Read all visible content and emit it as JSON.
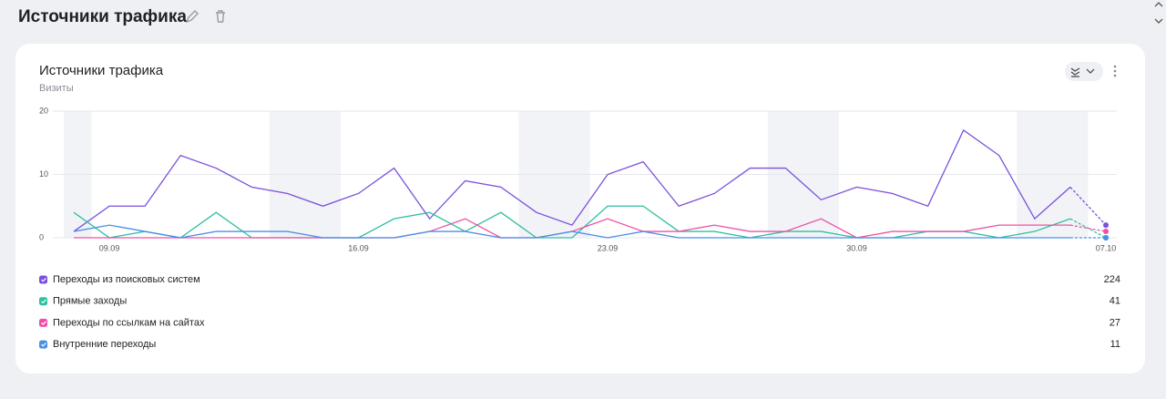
{
  "header": {
    "title": "Источники трафика"
  },
  "chart_data": {
    "type": "line",
    "title": "Источники трафика",
    "subtitle": "Визиты",
    "categories": [
      null,
      "09.09",
      null,
      null,
      null,
      null,
      null,
      null,
      "16.09",
      null,
      null,
      null,
      null,
      null,
      null,
      "23.09",
      null,
      null,
      null,
      null,
      null,
      null,
      "30.09",
      null,
      null,
      null,
      null,
      null,
      null,
      "07.10"
    ],
    "ylim": [
      0,
      20
    ],
    "yticks": [
      0,
      10,
      20
    ],
    "grid": true,
    "series": [
      {
        "name": "Переходы из поисковых систем",
        "color": "#7a4fdc",
        "total": 224,
        "values": [
          1,
          5,
          5,
          13,
          11,
          8,
          7,
          5,
          7,
          11,
          3,
          9,
          8,
          4,
          2,
          10,
          12,
          5,
          7,
          11,
          11,
          6,
          8,
          7,
          5,
          17,
          13,
          3,
          8,
          2
        ]
      },
      {
        "name": "Прямые заходы",
        "color": "#2fbf9f",
        "total": 41,
        "values": [
          4,
          0,
          1,
          0,
          4,
          0,
          0,
          0,
          0,
          3,
          4,
          1,
          4,
          0,
          0,
          5,
          5,
          1,
          1,
          0,
          1,
          1,
          0,
          0,
          1,
          1,
          0,
          1,
          3,
          0
        ]
      },
      {
        "name": "Переходы по ссылкам на сайтах",
        "color": "#ef4fa6",
        "total": 27,
        "values": [
          0,
          0,
          0,
          0,
          0,
          0,
          0,
          0,
          0,
          0,
          1,
          3,
          0,
          0,
          1,
          3,
          1,
          1,
          2,
          1,
          1,
          3,
          0,
          1,
          1,
          1,
          2,
          2,
          2,
          1
        ]
      },
      {
        "name": "Внутренние переходы",
        "color": "#4a8fe6",
        "total": 11,
        "values": [
          1,
          2,
          1,
          0,
          1,
          1,
          1,
          0,
          0,
          0,
          1,
          1,
          0,
          0,
          1,
          0,
          1,
          0,
          0,
          0,
          0,
          0,
          0,
          0,
          0,
          0,
          0,
          0,
          0,
          0
        ]
      }
    ]
  }
}
